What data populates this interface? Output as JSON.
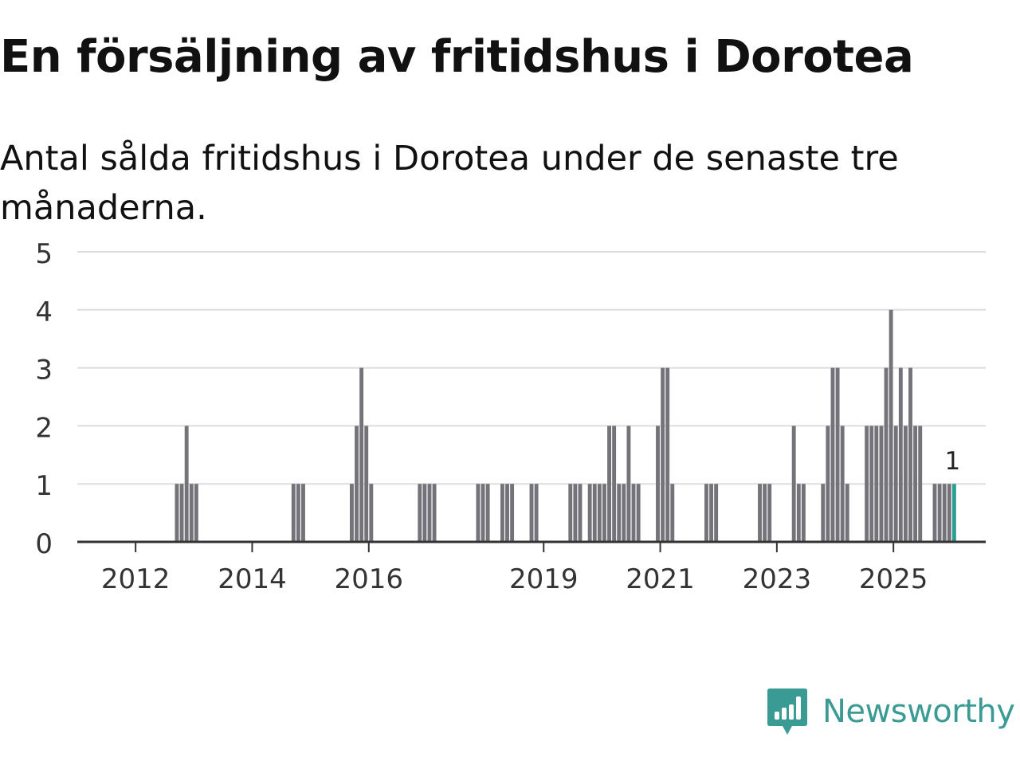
{
  "header": {
    "title": "En försäljning av fritidshus i Dorotea",
    "subtitle": "Antal sålda fritidshus i Dorotea under de senaste tre månaderna."
  },
  "brand": {
    "name": "Newsworthy",
    "color": "#3a9b94",
    "icon": "newsworthy-logo-icon"
  },
  "colors": {
    "bar": "#74737a",
    "highlight": "#2a9d95",
    "grid": "#dddddd",
    "axis": "#333333",
    "text": "#333333"
  },
  "chart_data": {
    "type": "bar",
    "title": "En försäljning av fritidshus i Dorotea",
    "subtitle": "Antal sålda fritidshus i Dorotea under de senaste tre månaderna.",
    "xlabel": "",
    "ylabel": "",
    "ylim": [
      0,
      5
    ],
    "yticks": [
      0,
      1,
      2,
      3,
      4,
      5
    ],
    "grid": true,
    "x_start": "2011-01",
    "x_end": "2026-08",
    "x_ticks": [
      {
        "label": "2012",
        "value": 2012.0
      },
      {
        "label": "2014",
        "value": 2014.0
      },
      {
        "label": "2016",
        "value": 2016.0
      },
      {
        "label": "2019",
        "value": 2019.0
      },
      {
        "label": "2021",
        "value": 2021.0
      },
      {
        "label": "2023",
        "value": 2023.0
      },
      {
        "label": "2025",
        "value": 2025.0
      }
    ],
    "series": [
      {
        "name": "Antal sålda fritidshus",
        "points": [
          [
            "2012-09",
            1
          ],
          [
            "2012-10",
            1
          ],
          [
            "2012-11",
            2
          ],
          [
            "2012-12",
            1
          ],
          [
            "2013-01",
            1
          ],
          [
            "2014-09",
            1
          ],
          [
            "2014-10",
            1
          ],
          [
            "2014-11",
            1
          ],
          [
            "2015-09",
            1
          ],
          [
            "2015-10",
            2
          ],
          [
            "2015-11",
            3
          ],
          [
            "2015-12",
            2
          ],
          [
            "2016-01",
            1
          ],
          [
            "2016-11",
            1
          ],
          [
            "2016-12",
            1
          ],
          [
            "2017-01",
            1
          ],
          [
            "2017-02",
            1
          ],
          [
            "2017-11",
            1
          ],
          [
            "2017-12",
            1
          ],
          [
            "2018-01",
            1
          ],
          [
            "2018-04",
            1
          ],
          [
            "2018-05",
            1
          ],
          [
            "2018-06",
            1
          ],
          [
            "2018-10",
            1
          ],
          [
            "2018-11",
            1
          ],
          [
            "2019-06",
            1
          ],
          [
            "2019-07",
            1
          ],
          [
            "2019-08",
            1
          ],
          [
            "2019-10",
            1
          ],
          [
            "2019-11",
            1
          ],
          [
            "2019-12",
            1
          ],
          [
            "2020-01",
            1
          ],
          [
            "2020-02",
            2
          ],
          [
            "2020-03",
            2
          ],
          [
            "2020-04",
            1
          ],
          [
            "2020-05",
            1
          ],
          [
            "2020-06",
            2
          ],
          [
            "2020-07",
            1
          ],
          [
            "2020-08",
            1
          ],
          [
            "2020-12",
            2
          ],
          [
            "2021-01",
            3
          ],
          [
            "2021-02",
            3
          ],
          [
            "2021-03",
            1
          ],
          [
            "2021-10",
            1
          ],
          [
            "2021-11",
            1
          ],
          [
            "2021-12",
            1
          ],
          [
            "2022-09",
            1
          ],
          [
            "2022-10",
            1
          ],
          [
            "2022-11",
            1
          ],
          [
            "2023-04",
            2
          ],
          [
            "2023-05",
            1
          ],
          [
            "2023-06",
            1
          ],
          [
            "2023-10",
            1
          ],
          [
            "2023-11",
            2
          ],
          [
            "2023-12",
            3
          ],
          [
            "2024-01",
            3
          ],
          [
            "2024-02",
            2
          ],
          [
            "2024-03",
            1
          ],
          [
            "2024-07",
            2
          ],
          [
            "2024-08",
            2
          ],
          [
            "2024-09",
            2
          ],
          [
            "2024-10",
            2
          ],
          [
            "2024-11",
            3
          ],
          [
            "2024-12",
            4
          ],
          [
            "2025-01",
            2
          ],
          [
            "2025-02",
            3
          ],
          [
            "2025-03",
            2
          ],
          [
            "2025-04",
            3
          ],
          [
            "2025-05",
            2
          ],
          [
            "2025-06",
            2
          ],
          [
            "2025-09",
            1
          ],
          [
            "2025-10",
            1
          ],
          [
            "2025-11",
            1
          ],
          [
            "2025-12",
            1
          ],
          [
            "2026-01",
            1
          ]
        ]
      }
    ],
    "highlight": {
      "x": "2026-01",
      "value": 1,
      "label": "1"
    }
  }
}
